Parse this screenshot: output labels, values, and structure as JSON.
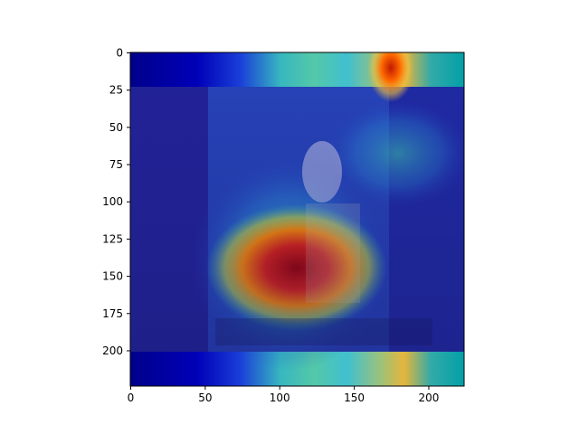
{
  "chart_data": {
    "type": "heatmap",
    "description_kind": "class-activation heatmap overlaid on image",
    "colormap": "jet",
    "xlim": [
      0,
      224
    ],
    "ylim": [
      224,
      0
    ],
    "x_ticks": [
      0,
      50,
      100,
      150,
      200
    ],
    "y_ticks": [
      0,
      25,
      50,
      75,
      100,
      125,
      150,
      175,
      200
    ],
    "grid": false,
    "hotspots": [
      {
        "x": 115,
        "y": 147,
        "intensity": 1.0
      },
      {
        "x": 175,
        "y": 10,
        "intensity": 0.95
      },
      {
        "x": 140,
        "y": 125,
        "intensity": 0.7
      }
    ]
  }
}
